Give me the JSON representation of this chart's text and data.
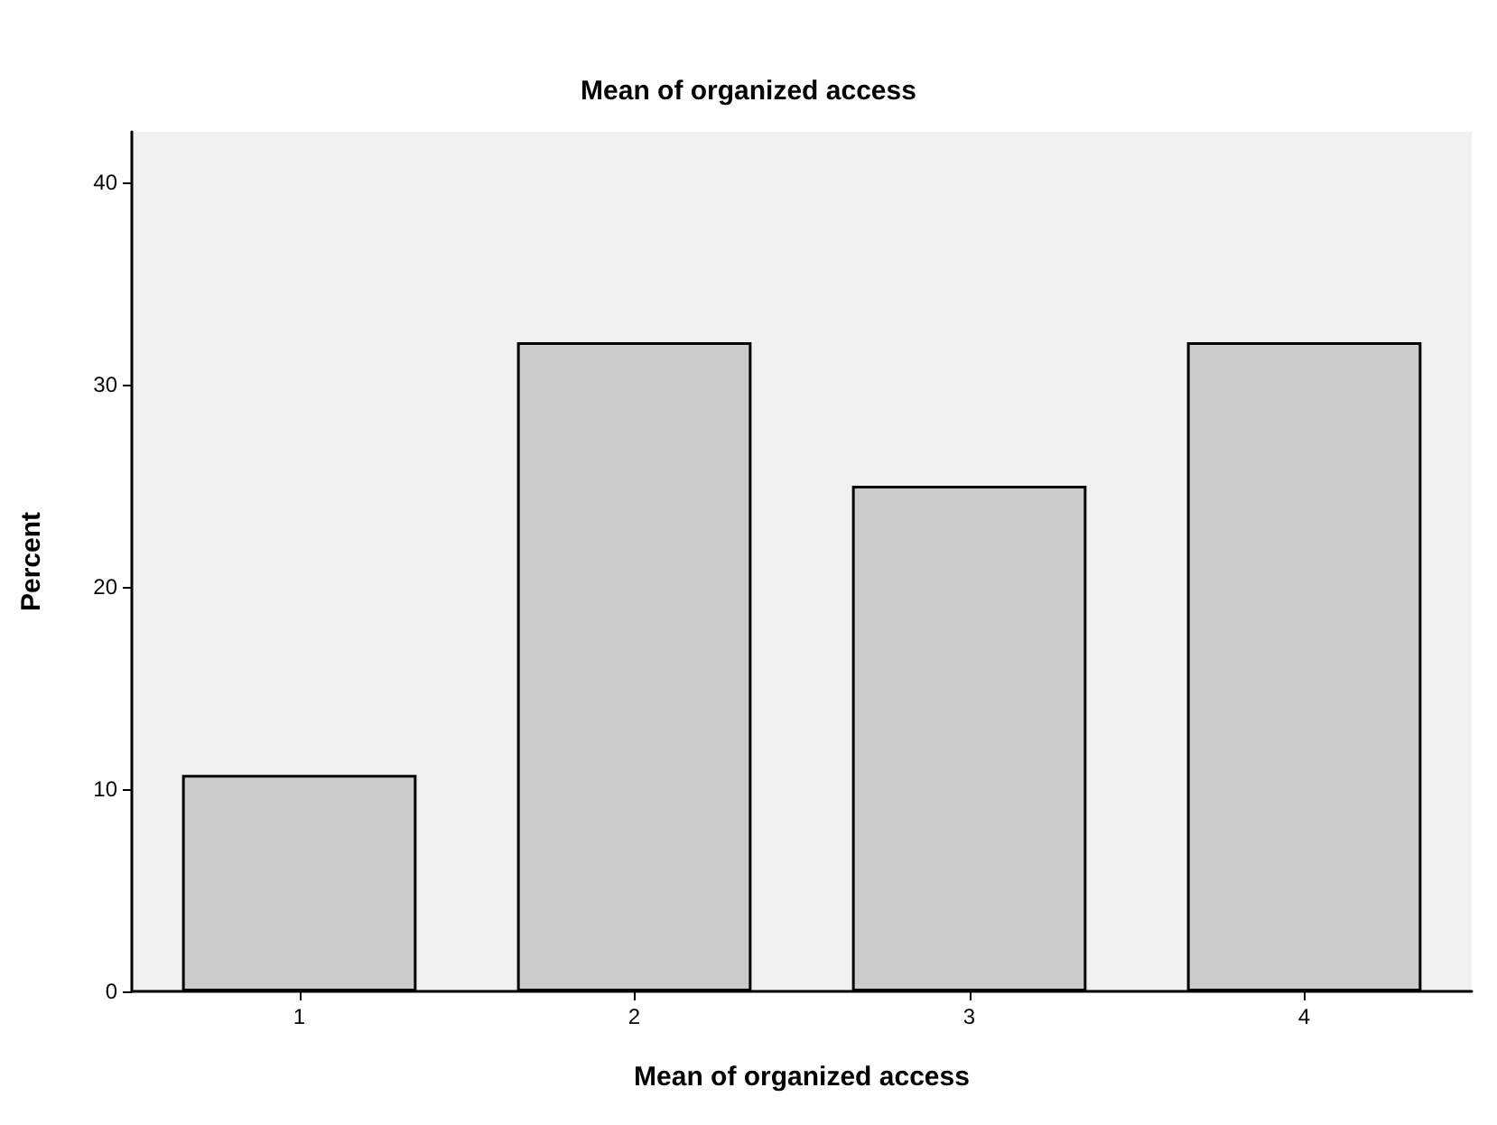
{
  "chart_data": {
    "type": "bar",
    "title": "Mean of organized access",
    "xlabel": "Mean of organized access",
    "ylabel": "Percent",
    "categories": [
      "1",
      "2",
      "3",
      "4"
    ],
    "values": [
      10.7,
      32.1,
      25.0,
      32.1
    ],
    "color": "#cccccc",
    "ylim": [
      0,
      42.5
    ],
    "yticks": [
      0,
      10,
      20,
      30,
      40
    ],
    "grid": false
  }
}
